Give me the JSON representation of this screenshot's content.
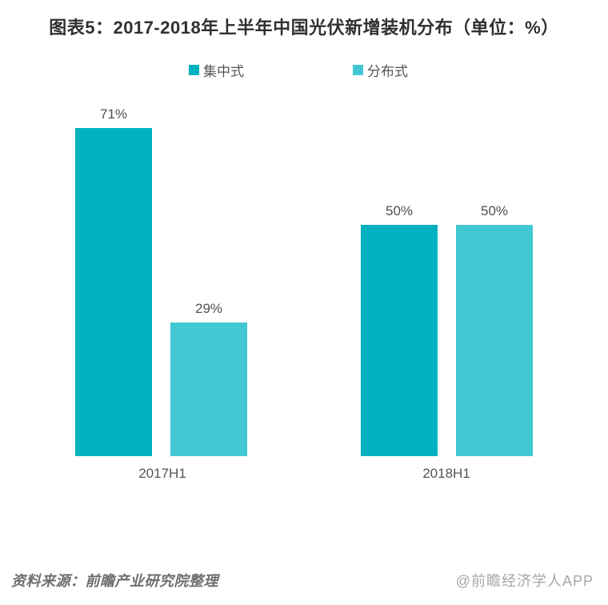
{
  "title": "图表5：2017-2018年上半年中国光伏新增装机分布（单位：%）",
  "chart_data": {
    "type": "bar",
    "categories": [
      "2017H1",
      "2018H1"
    ],
    "series": [
      {
        "name": "集中式",
        "color": "#00b2bf",
        "values": [
          71,
          50
        ]
      },
      {
        "name": "分布式",
        "color": "#41c8d3",
        "values": [
          29,
          50
        ]
      }
    ],
    "unit": "%",
    "value_labels": [
      [
        "71%",
        "29%"
      ],
      [
        "50%",
        "50%"
      ]
    ],
    "title": "图表5：2017-2018年上半年中国光伏新增装机分布（单位：%）",
    "xlabel": "",
    "ylabel": "",
    "ylim": [
      0,
      80
    ],
    "grid": false,
    "axes_hidden": true,
    "legend_position": "top"
  },
  "legend": {
    "item1": "集中式",
    "item2": "分布式"
  },
  "colors": {
    "series1": "#00b2bf",
    "series2": "#41c8d3"
  },
  "footer": {
    "source": "资料来源：前瞻产业研究院整理",
    "watermark": "@前瞻经济学人APP"
  }
}
